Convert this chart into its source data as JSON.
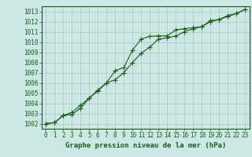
{
  "xlabel": "Graphe pression niveau de la mer (hPa)",
  "background_color": "#cce8e4",
  "line_color": "#1a5c1a",
  "grid_color": "#b0c4c0",
  "ylim": [
    1001.5,
    1013.5
  ],
  "xlim": [
    -0.5,
    23.5
  ],
  "yticks": [
    1002,
    1003,
    1004,
    1005,
    1006,
    1007,
    1008,
    1009,
    1010,
    1011,
    1012,
    1013
  ],
  "xticks": [
    0,
    1,
    2,
    3,
    4,
    5,
    6,
    7,
    8,
    9,
    10,
    11,
    12,
    13,
    14,
    15,
    16,
    17,
    18,
    19,
    20,
    21,
    22,
    23
  ],
  "line1_x": [
    0,
    1,
    2,
    3,
    4,
    5,
    6,
    7,
    8,
    9,
    10,
    11,
    12,
    13,
    14,
    15,
    16,
    17,
    18,
    19,
    20,
    21,
    22,
    23
  ],
  "line1_y": [
    1002.0,
    1002.1,
    1002.8,
    1003.1,
    1003.8,
    1004.5,
    1005.2,
    1006.0,
    1007.2,
    1007.5,
    1009.2,
    1010.3,
    1010.55,
    1010.6,
    1010.6,
    1011.2,
    1011.3,
    1011.4,
    1011.5,
    1012.1,
    1012.2,
    1012.6,
    1012.8,
    1013.2
  ],
  "line2_x": [
    0,
    1,
    2,
    3,
    4,
    5,
    6,
    7,
    8,
    9,
    10,
    11,
    12,
    13,
    14,
    15,
    16,
    17,
    18,
    19,
    20,
    21,
    22,
    23
  ],
  "line2_y": [
    1002.0,
    1002.1,
    1002.8,
    1002.9,
    1003.5,
    1004.5,
    1005.3,
    1006.0,
    1006.3,
    1007.0,
    1008.0,
    1008.9,
    1009.5,
    1010.3,
    1010.4,
    1010.6,
    1011.0,
    1011.3,
    1011.5,
    1012.0,
    1012.2,
    1012.5,
    1012.8,
    1013.2
  ],
  "label_fontsize": 5.5,
  "xlabel_fontsize": 6.5
}
